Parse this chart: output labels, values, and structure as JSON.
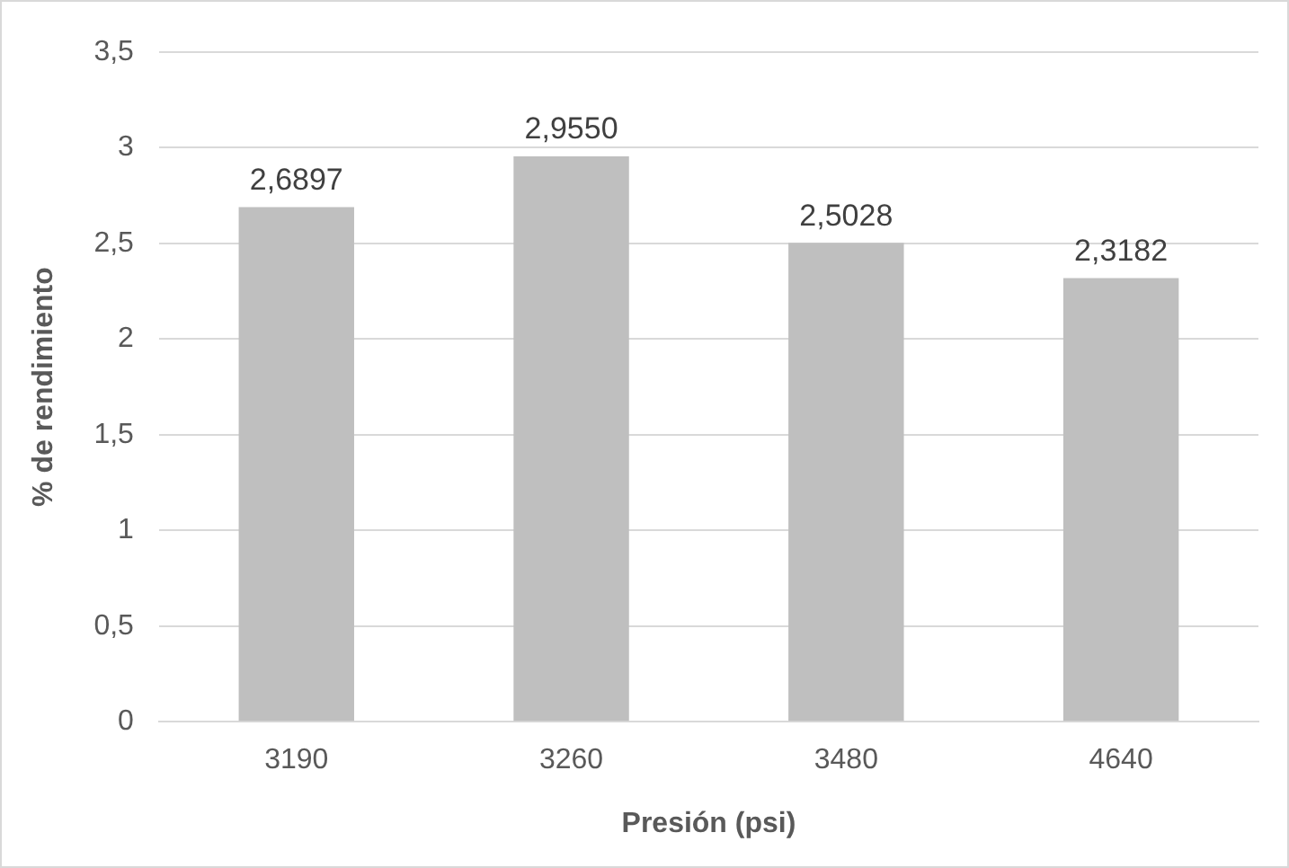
{
  "chart_data": {
    "type": "bar",
    "xlabel": "Presión (psi)",
    "ylabel": "% de rendimiento",
    "categories": [
      "3190",
      "3260",
      "3480",
      "4640"
    ],
    "values": [
      2.6897,
      2.955,
      2.5028,
      2.3182
    ],
    "value_labels": [
      "2,6897",
      "2,9550",
      "2,5028",
      "2,3182"
    ],
    "color": "#bfbfbf",
    "ylim": [
      0,
      3.5
    ],
    "yticks": [
      0,
      {
        "value": 0.5,
        "label": "0,5"
      },
      1,
      {
        "value": 1.5,
        "label": "1,5"
      },
      2,
      {
        "value": 2.5,
        "label": "2,5"
      },
      3,
      {
        "value": 3.5,
        "label": "3,5"
      }
    ],
    "grid": "y",
    "legend": false
  }
}
